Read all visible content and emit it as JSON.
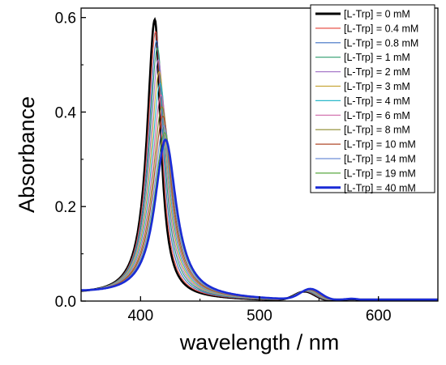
{
  "chart_data": {
    "type": "line",
    "title": "",
    "xlabel": "wavelength / nm",
    "ylabel": "Absorbance",
    "xlim": [
      350,
      650
    ],
    "ylim": [
      0,
      0.62
    ],
    "x_ticks": [
      400,
      500,
      600
    ],
    "x_tick_labels": [
      "400",
      "500",
      "600"
    ],
    "y_ticks": [
      0.0,
      0.2,
      0.4,
      0.6
    ],
    "y_tick_labels": [
      "0.0",
      "0.2",
      "0.4",
      "0.6"
    ],
    "legend_position": "top-right",
    "grid": false,
    "peak_wavelength_first": 412,
    "peak_wavelength_last": 421,
    "series": [
      {
        "name": "[L-Trp] = 0 mM",
        "color": "#000000",
        "peak_absorbance": 0.59,
        "bold": true
      },
      {
        "name": "[L-Trp] = 0.4 mM",
        "color": "#e8534a",
        "peak_absorbance": 0.565
      },
      {
        "name": "[L-Trp] = 0.8 mM",
        "color": "#3c6fc4",
        "peak_absorbance": 0.545
      },
      {
        "name": "[L-Trp] = 1 mM",
        "color": "#2e9b6e",
        "peak_absorbance": 0.53
      },
      {
        "name": "[L-Trp] = 2 mM",
        "color": "#a779c9",
        "peak_absorbance": 0.505
      },
      {
        "name": "[L-Trp] = 3 mM",
        "color": "#c7a63a",
        "peak_absorbance": 0.48
      },
      {
        "name": "[L-Trp] = 4 mM",
        "color": "#2bb8c9",
        "peak_absorbance": 0.455
      },
      {
        "name": "[L-Trp] = 6 mM",
        "color": "#cf67a8",
        "peak_absorbance": 0.43
      },
      {
        "name": "[L-Trp] = 8 mM",
        "color": "#8c8a2c",
        "peak_absorbance": 0.405
      },
      {
        "name": "[L-Trp] = 10 mM",
        "color": "#b04a2a",
        "peak_absorbance": 0.385
      },
      {
        "name": "[L-Trp] = 14 mM",
        "color": "#6d8fd6",
        "peak_absorbance": 0.365
      },
      {
        "name": "[L-Trp] = 19 mM",
        "color": "#5aa842",
        "peak_absorbance": 0.35
      },
      {
        "name": "[L-Trp] = 40 mM",
        "color": "#1a2bd6",
        "peak_absorbance": 0.335,
        "bold": true
      }
    ]
  }
}
